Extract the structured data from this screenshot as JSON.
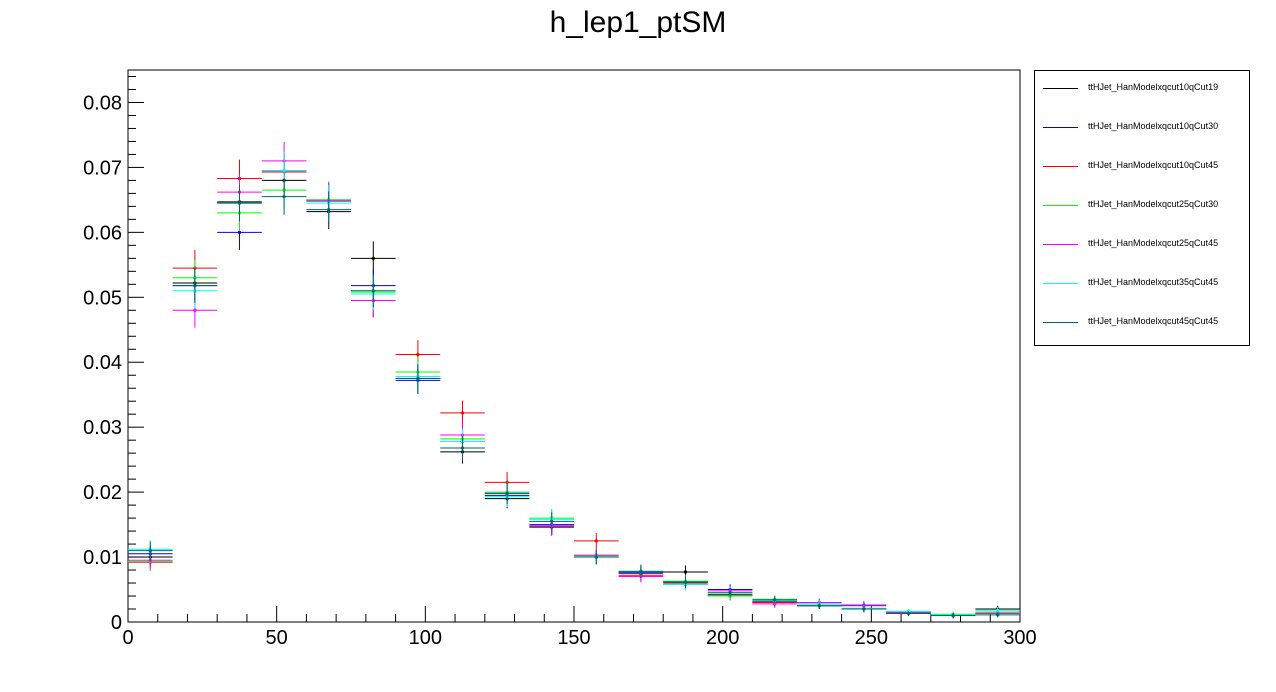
{
  "chart_data": {
    "type": "scatter",
    "title": "h_lep1_ptSM",
    "xlabel": "",
    "ylabel": "",
    "xlim": [
      0,
      300
    ],
    "ylim": [
      0,
      0.085
    ],
    "bin_width": 15,
    "x_ticks": [
      "0",
      "50",
      "100",
      "150",
      "200",
      "250",
      "300"
    ],
    "y_ticks": [
      "0",
      "0.01",
      "0.02",
      "0.03",
      "0.04",
      "0.05",
      "0.06",
      "0.07",
      "0.08"
    ],
    "legend_position": "outside-right",
    "x": [
      7.5,
      22.5,
      37.5,
      52.5,
      67.5,
      82.5,
      97.5,
      112.5,
      127.5,
      142.5,
      157.5,
      172.5,
      187.5,
      202.5,
      217.5,
      232.5,
      247.5,
      262.5,
      277.5,
      292.5
    ],
    "series": [
      {
        "name": "ttHJet_HanModelxqcut10qCut19",
        "color": "#000000",
        "values": [
          0.01,
          0.0522,
          0.0647,
          0.068,
          0.0632,
          0.056,
          0.0375,
          0.0262,
          0.019,
          0.0146,
          0.01,
          0.0077,
          0.0077,
          0.0042,
          0.0031,
          0.0025,
          0.002,
          0.0014,
          0.001,
          0.002
        ],
        "errors": [
          0.0014,
          0.0027,
          0.0027,
          0.0027,
          0.0027,
          0.0026,
          0.0022,
          0.0018,
          0.0015,
          0.0013,
          0.0011,
          0.001,
          0.001,
          0.0007,
          0.0006,
          0.0005,
          0.0005,
          0.0004,
          0.0004,
          0.0005
        ]
      },
      {
        "name": "ttHJet_HanModelxqcut10qCut30",
        "color": "#0000ff",
        "values": [
          0.0105,
          0.0518,
          0.06,
          0.0695,
          0.0648,
          0.0518,
          0.0372,
          0.0278,
          0.0195,
          0.015,
          0.01,
          0.0075,
          0.0062,
          0.005,
          0.003,
          0.0028,
          0.0026,
          0.0016,
          0.001,
          0.0013
        ],
        "errors": [
          0.0012,
          0.0027,
          0.0027,
          0.0028,
          0.0027,
          0.0025,
          0.0021,
          0.0019,
          0.0016,
          0.0013,
          0.0011,
          0.001,
          0.0009,
          0.0008,
          0.0006,
          0.0006,
          0.0006,
          0.0004,
          0.0004,
          0.0004
        ]
      },
      {
        "name": "ttHJet_HanModelxqcut10qCut45",
        "color": "#ff0000",
        "values": [
          0.0092,
          0.0545,
          0.0683,
          0.0693,
          0.065,
          0.0495,
          0.0412,
          0.0322,
          0.0215,
          0.0148,
          0.0125,
          0.0072,
          0.006,
          0.004,
          0.003,
          0.003,
          0.002,
          0.0015,
          0.001,
          0.0015
        ],
        "errors": [
          0.0013,
          0.0028,
          0.0029,
          0.0029,
          0.0028,
          0.0026,
          0.0022,
          0.0019,
          0.0016,
          0.0013,
          0.0012,
          0.001,
          0.0009,
          0.0007,
          0.0006,
          0.0006,
          0.0005,
          0.0004,
          0.0004,
          0.0004
        ]
      },
      {
        "name": "ttHJet_HanModelxqcut25qCut30",
        "color": "#00ff00",
        "values": [
          0.0093,
          0.053,
          0.063,
          0.0665,
          0.065,
          0.0508,
          0.0385,
          0.0282,
          0.02,
          0.016,
          0.0102,
          0.0078,
          0.0063,
          0.004,
          0.0035,
          0.0025,
          0.0021,
          0.0016,
          0.0012,
          0.0015
        ],
        "errors": [
          0.0013,
          0.0027,
          0.0028,
          0.0028,
          0.0028,
          0.0025,
          0.0022,
          0.0019,
          0.0016,
          0.0014,
          0.0011,
          0.001,
          0.0009,
          0.0007,
          0.0006,
          0.0005,
          0.0005,
          0.0004,
          0.0004,
          0.0004
        ]
      },
      {
        "name": "ttHJet_HanModelxqcut25qCut45",
        "color": "#ff00ff",
        "values": [
          0.0095,
          0.048,
          0.0662,
          0.071,
          0.0648,
          0.0495,
          0.0375,
          0.0288,
          0.0198,
          0.0148,
          0.0103,
          0.007,
          0.0058,
          0.0048,
          0.0028,
          0.003,
          0.0025,
          0.0015,
          0.001,
          0.0013
        ],
        "errors": [
          0.0013,
          0.0027,
          0.0028,
          0.0029,
          0.0028,
          0.0025,
          0.0022,
          0.0019,
          0.0016,
          0.0014,
          0.0011,
          0.0009,
          0.0009,
          0.0008,
          0.0006,
          0.0006,
          0.0005,
          0.0004,
          0.0004,
          0.0004
        ]
      },
      {
        "name": "ttHJet_HanModelxqcut35qCut45",
        "color": "#00ffff",
        "values": [
          0.0112,
          0.051,
          0.0645,
          0.0695,
          0.0645,
          0.0505,
          0.0378,
          0.0278,
          0.0193,
          0.0158,
          0.01,
          0.0078,
          0.0058,
          0.0045,
          0.0033,
          0.0028,
          0.0021,
          0.0016,
          0.0011,
          0.0018
        ],
        "errors": [
          0.0014,
          0.0027,
          0.0028,
          0.0029,
          0.0028,
          0.0025,
          0.0022,
          0.0019,
          0.0016,
          0.0014,
          0.0011,
          0.001,
          0.0009,
          0.0008,
          0.0006,
          0.0006,
          0.0005,
          0.0004,
          0.0004,
          0.0005
        ]
      },
      {
        "name": "ttHJet_HanModelxqcut45qCut45",
        "color": "#006666",
        "values": [
          0.011,
          0.0518,
          0.0645,
          0.0655,
          0.0635,
          0.051,
          0.0375,
          0.0268,
          0.0198,
          0.0155,
          0.01,
          0.0078,
          0.0061,
          0.0045,
          0.0034,
          0.0025,
          0.002,
          0.0013,
          0.001,
          0.0011
        ],
        "errors": [
          0.0014,
          0.0027,
          0.0028,
          0.0028,
          0.0028,
          0.0025,
          0.0022,
          0.0019,
          0.0016,
          0.0014,
          0.0011,
          0.001,
          0.0009,
          0.0007,
          0.0006,
          0.0005,
          0.0005,
          0.0004,
          0.0004,
          0.0004
        ]
      }
    ]
  }
}
